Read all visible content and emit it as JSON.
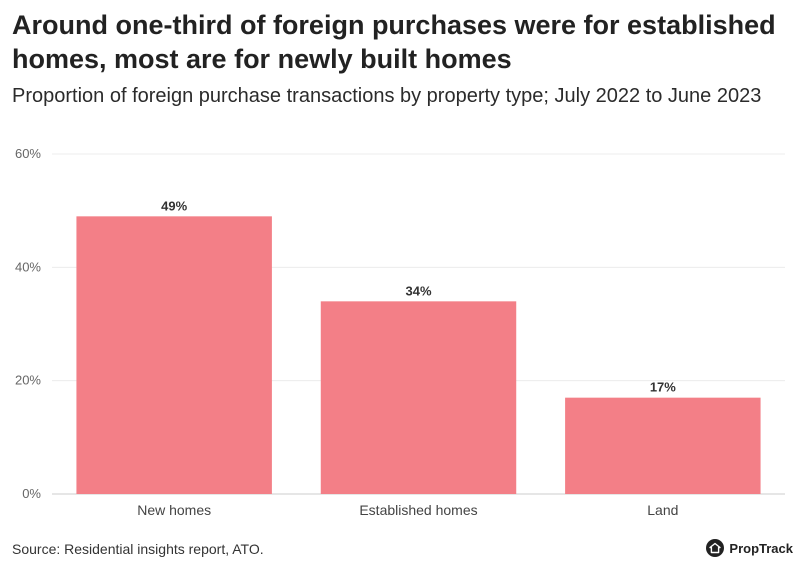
{
  "header": {
    "title": "Around one-third of foreign purchases were for established homes, most are for newly built homes",
    "subtitle": "Proportion of foreign purchase transactions by property type; July 2022 to June 2023"
  },
  "footer": {
    "source": "Source: Residential insights report, ATO.",
    "brand": "PropTrack",
    "brand_icon": "house-logo-icon"
  },
  "colors": {
    "bar": "#f37f87",
    "grid": "#ececec",
    "axis": "#cccccc"
  },
  "chart_data": {
    "type": "bar",
    "categories": [
      "New homes",
      "Established homes",
      "Land"
    ],
    "values": [
      49,
      34,
      17
    ],
    "data_labels": [
      "49%",
      "34%",
      "17%"
    ],
    "title": "Around one-third of foreign purchases were for established homes, most are for newly built homes",
    "subtitle": "Proportion of foreign purchase transactions by property type; July 2022 to June 2023",
    "xlabel": "",
    "ylabel": "",
    "ylim": [
      0,
      60
    ],
    "yticks": [
      0,
      20,
      40,
      60
    ],
    "ytick_labels": [
      "0%",
      "20%",
      "40%",
      "60%"
    ],
    "grid": true,
    "legend": "none"
  }
}
